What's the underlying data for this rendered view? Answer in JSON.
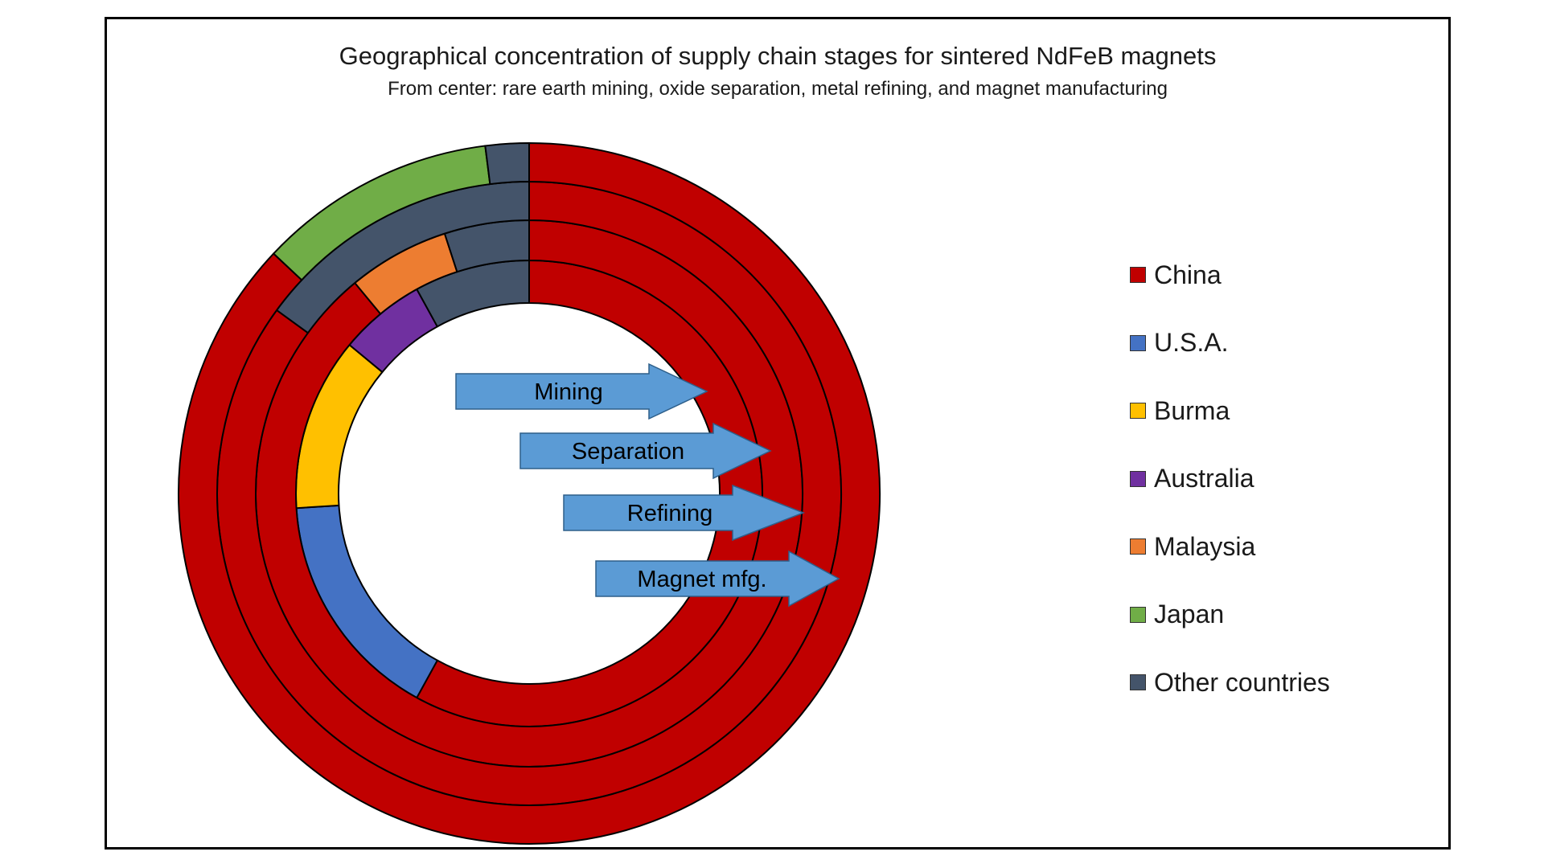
{
  "chart_data": {
    "type": "pie",
    "title": "Geographical concentration of supply chain stages for sintered NdFeB magnets",
    "subtitle": "From center: rare earth mining, oxide separation, metal refining, and magnet manufacturing",
    "categories": [
      "China",
      "U.S.A.",
      "Burma",
      "Australia",
      "Malaysia",
      "Japan",
      "Other countries"
    ],
    "colors": {
      "China": "#c00000",
      "U.S.A.": "#4472c4",
      "Burma": "#ffc000",
      "Australia": "#7030a0",
      "Malaysia": "#ed7d31",
      "Japan": "#70ad47",
      "Other countries": "#44546a"
    },
    "series": [
      {
        "name": "Mining",
        "values": [
          58,
          16,
          12,
          6,
          0,
          0,
          8
        ]
      },
      {
        "name": "Separation",
        "values": [
          89,
          0,
          0,
          0,
          6,
          0,
          5
        ]
      },
      {
        "name": "Refining",
        "values": [
          85,
          0,
          0,
          0,
          0,
          0,
          15
        ]
      },
      {
        "name": "Magnet mfg.",
        "values": [
          87,
          0,
          0,
          0,
          0,
          11,
          2
        ]
      }
    ],
    "legend_position": "right"
  }
}
